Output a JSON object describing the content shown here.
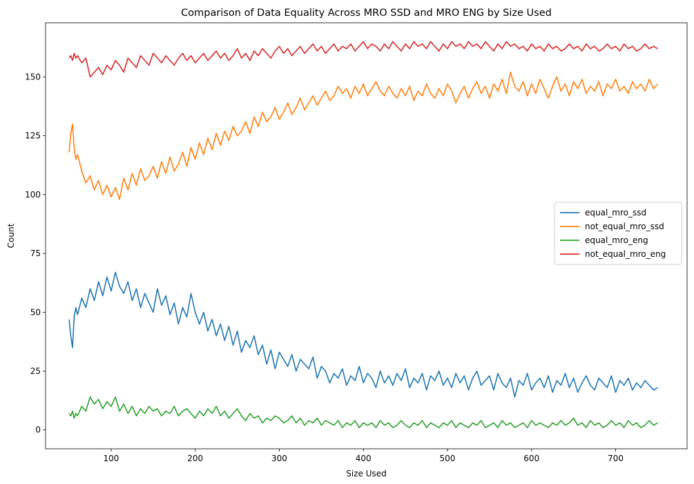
{
  "chart_data": {
    "type": "line",
    "title": "Comparison of Data Equality Across MRO SSD and MRO ENG by Size Used",
    "xlabel": "Size Used",
    "ylabel": "Count",
    "xlim": [
      22,
      785
    ],
    "ylim": [
      -8,
      173
    ],
    "xticks": [
      100,
      200,
      300,
      400,
      500,
      600,
      700
    ],
    "yticks": [
      0,
      25,
      50,
      75,
      100,
      125,
      150
    ],
    "legend_position": "center-right",
    "grid": false,
    "series": [
      {
        "name": "equal_mro_ssd",
        "color": "#1f77b4",
        "x": [
          50,
          52,
          54,
          56,
          58,
          60,
          65,
          70,
          75,
          80,
          85,
          90,
          95,
          100,
          105,
          110,
          115,
          120,
          125,
          130,
          135,
          140,
          145,
          150,
          155,
          160,
          165,
          170,
          175,
          180,
          185,
          190,
          195,
          200,
          205,
          210,
          215,
          220,
          225,
          230,
          235,
          240,
          245,
          250,
          255,
          260,
          265,
          270,
          275,
          280,
          285,
          290,
          295,
          300,
          305,
          310,
          315,
          320,
          325,
          330,
          335,
          340,
          345,
          350,
          355,
          360,
          365,
          370,
          375,
          380,
          385,
          390,
          395,
          400,
          405,
          410,
          415,
          420,
          425,
          430,
          435,
          440,
          445,
          450,
          455,
          460,
          465,
          470,
          475,
          480,
          485,
          490,
          495,
          500,
          505,
          510,
          515,
          520,
          525,
          530,
          535,
          540,
          545,
          550,
          555,
          560,
          565,
          570,
          575,
          580,
          585,
          590,
          595,
          600,
          605,
          610,
          615,
          620,
          625,
          630,
          635,
          640,
          645,
          650,
          655,
          660,
          665,
          670,
          675,
          680,
          685,
          690,
          695,
          700,
          705,
          710,
          715,
          720,
          725,
          730,
          735,
          740,
          745,
          750
        ],
        "values": [
          47,
          40,
          35,
          48,
          52,
          49,
          56,
          52,
          60,
          55,
          63,
          57,
          65,
          59,
          67,
          61,
          58,
          63,
          55,
          60,
          52,
          58,
          54,
          50,
          60,
          53,
          57,
          49,
          54,
          45,
          52,
          48,
          58,
          50,
          45,
          50,
          42,
          47,
          40,
          45,
          38,
          44,
          36,
          42,
          33,
          38,
          35,
          40,
          32,
          36,
          28,
          34,
          26,
          33,
          30,
          27,
          32,
          25,
          30,
          28,
          26,
          31,
          22,
          27,
          25,
          20,
          24,
          22,
          26,
          19,
          23,
          21,
          27,
          20,
          24,
          22,
          18,
          25,
          20,
          23,
          19,
          24,
          21,
          26,
          18,
          22,
          20,
          24,
          17,
          23,
          21,
          25,
          19,
          22,
          18,
          24,
          20,
          23,
          17,
          22,
          25,
          19,
          21,
          23,
          17,
          24,
          20,
          18,
          22,
          14,
          21,
          19,
          24,
          17,
          20,
          22,
          18,
          23,
          16,
          21,
          19,
          24,
          18,
          22,
          16,
          20,
          23,
          19,
          17,
          22,
          20,
          18,
          23,
          16,
          21,
          19,
          22,
          17,
          20,
          18,
          21,
          19,
          17,
          18
        ]
      },
      {
        "name": "not_equal_mro_ssd",
        "color": "#ff7f0e",
        "x": [
          50,
          52,
          54,
          56,
          58,
          60,
          65,
          70,
          75,
          80,
          85,
          90,
          95,
          100,
          105,
          110,
          115,
          120,
          125,
          130,
          135,
          140,
          145,
          150,
          155,
          160,
          165,
          170,
          175,
          180,
          185,
          190,
          195,
          200,
          205,
          210,
          215,
          220,
          225,
          230,
          235,
          240,
          245,
          250,
          255,
          260,
          265,
          270,
          275,
          280,
          285,
          290,
          295,
          300,
          305,
          310,
          315,
          320,
          325,
          330,
          335,
          340,
          345,
          350,
          355,
          360,
          365,
          370,
          375,
          380,
          385,
          390,
          395,
          400,
          405,
          410,
          415,
          420,
          425,
          430,
          435,
          440,
          445,
          450,
          455,
          460,
          465,
          470,
          475,
          480,
          485,
          490,
          495,
          500,
          505,
          510,
          515,
          520,
          525,
          530,
          535,
          540,
          545,
          550,
          555,
          560,
          565,
          570,
          575,
          580,
          585,
          590,
          595,
          600,
          605,
          610,
          615,
          620,
          625,
          630,
          635,
          640,
          645,
          650,
          655,
          660,
          665,
          670,
          675,
          680,
          685,
          690,
          695,
          700,
          705,
          710,
          715,
          720,
          725,
          730,
          735,
          740,
          745,
          750
        ],
        "values": [
          118,
          126,
          130,
          120,
          115,
          117,
          110,
          105,
          108,
          102,
          106,
          100,
          104,
          99,
          103,
          98,
          107,
          102,
          109,
          104,
          111,
          106,
          108,
          112,
          107,
          114,
          109,
          116,
          110,
          113,
          118,
          112,
          120,
          115,
          122,
          117,
          124,
          119,
          126,
          121,
          127,
          123,
          129,
          125,
          127,
          131,
          126,
          133,
          129,
          135,
          131,
          133,
          137,
          132,
          135,
          139,
          134,
          137,
          141,
          136,
          139,
          142,
          138,
          141,
          144,
          140,
          142,
          146,
          143,
          145,
          141,
          146,
          143,
          147,
          142,
          145,
          148,
          144,
          142,
          146,
          143,
          141,
          145,
          142,
          146,
          140,
          144,
          142,
          147,
          143,
          141,
          145,
          142,
          147,
          144,
          139,
          143,
          146,
          141,
          145,
          148,
          143,
          146,
          141,
          147,
          144,
          149,
          143,
          152,
          146,
          144,
          148,
          142,
          147,
          143,
          149,
          145,
          141,
          146,
          150,
          144,
          147,
          142,
          148,
          145,
          149,
          143,
          146,
          144,
          148,
          142,
          147,
          145,
          149,
          144,
          146,
          143,
          148,
          145,
          147,
          144,
          149,
          145,
          147
        ]
      },
      {
        "name": "equal_mro_eng",
        "color": "#2ca02c",
        "x": [
          50,
          52,
          54,
          56,
          58,
          60,
          65,
          70,
          75,
          80,
          85,
          90,
          95,
          100,
          105,
          110,
          115,
          120,
          125,
          130,
          135,
          140,
          145,
          150,
          155,
          160,
          165,
          170,
          175,
          180,
          185,
          190,
          195,
          200,
          205,
          210,
          215,
          220,
          225,
          230,
          235,
          240,
          245,
          250,
          255,
          260,
          265,
          270,
          275,
          280,
          285,
          290,
          295,
          300,
          305,
          310,
          315,
          320,
          325,
          330,
          335,
          340,
          345,
          350,
          355,
          360,
          365,
          370,
          375,
          380,
          385,
          390,
          395,
          400,
          405,
          410,
          415,
          420,
          425,
          430,
          435,
          440,
          445,
          450,
          455,
          460,
          465,
          470,
          475,
          480,
          485,
          490,
          495,
          500,
          505,
          510,
          515,
          520,
          525,
          530,
          535,
          540,
          545,
          550,
          555,
          560,
          565,
          570,
          575,
          580,
          585,
          590,
          595,
          600,
          605,
          610,
          615,
          620,
          625,
          630,
          635,
          640,
          645,
          650,
          655,
          660,
          665,
          670,
          675,
          680,
          685,
          690,
          695,
          700,
          705,
          710,
          715,
          720,
          725,
          730,
          735,
          740,
          745,
          750
        ],
        "values": [
          7,
          6,
          8,
          5,
          7,
          6,
          10,
          8,
          14,
          11,
          13,
          9,
          12,
          10,
          14,
          8,
          11,
          7,
          10,
          6,
          9,
          7,
          10,
          8,
          9,
          6,
          8,
          7,
          10,
          6,
          8,
          9,
          7,
          5,
          8,
          6,
          9,
          7,
          10,
          6,
          8,
          5,
          7,
          9,
          6,
          4,
          7,
          5,
          6,
          3,
          5,
          4,
          6,
          5,
          3,
          4,
          6,
          3,
          5,
          2,
          4,
          3,
          5,
          2,
          4,
          3,
          2,
          4,
          1,
          3,
          2,
          4,
          1,
          3,
          2,
          3,
          1,
          4,
          2,
          3,
          1,
          2,
          4,
          2,
          1,
          3,
          2,
          4,
          1,
          3,
          2,
          1,
          3,
          2,
          4,
          1,
          3,
          2,
          1,
          3,
          2,
          4,
          1,
          2,
          3,
          1,
          4,
          2,
          3,
          1,
          2,
          3,
          1,
          4,
          2,
          3,
          2,
          1,
          3,
          2,
          4,
          2,
          3,
          5,
          2,
          3,
          1,
          4,
          2,
          3,
          1,
          2,
          4,
          2,
          3,
          1,
          4,
          2,
          3,
          1,
          2,
          4,
          2,
          3
        ]
      },
      {
        "name": "not_equal_mro_eng",
        "color": "#d62728",
        "x": [
          50,
          52,
          54,
          56,
          58,
          60,
          65,
          70,
          75,
          80,
          85,
          90,
          95,
          100,
          105,
          110,
          115,
          120,
          125,
          130,
          135,
          140,
          145,
          150,
          155,
          160,
          165,
          170,
          175,
          180,
          185,
          190,
          195,
          200,
          205,
          210,
          215,
          220,
          225,
          230,
          235,
          240,
          245,
          250,
          255,
          260,
          265,
          270,
          275,
          280,
          285,
          290,
          295,
          300,
          305,
          310,
          315,
          320,
          325,
          330,
          335,
          340,
          345,
          350,
          355,
          360,
          365,
          370,
          375,
          380,
          385,
          390,
          395,
          400,
          405,
          410,
          415,
          420,
          425,
          430,
          435,
          440,
          445,
          450,
          455,
          460,
          465,
          470,
          475,
          480,
          485,
          490,
          495,
          500,
          505,
          510,
          515,
          520,
          525,
          530,
          535,
          540,
          545,
          550,
          555,
          560,
          565,
          570,
          575,
          580,
          585,
          590,
          595,
          600,
          605,
          610,
          615,
          620,
          625,
          630,
          635,
          640,
          645,
          650,
          655,
          660,
          665,
          670,
          675,
          680,
          685,
          690,
          695,
          700,
          705,
          710,
          715,
          720,
          725,
          730,
          735,
          740,
          745,
          750
        ],
        "values": [
          158,
          159,
          157,
          160,
          158,
          159,
          156,
          158,
          150,
          152,
          154,
          151,
          155,
          153,
          157,
          155,
          152,
          158,
          156,
          154,
          159,
          157,
          155,
          160,
          158,
          156,
          159,
          157,
          155,
          158,
          160,
          157,
          159,
          156,
          158,
          160,
          157,
          159,
          161,
          158,
          160,
          157,
          159,
          162,
          158,
          160,
          157,
          161,
          159,
          162,
          160,
          158,
          161,
          163,
          160,
          162,
          159,
          161,
          163,
          160,
          162,
          164,
          161,
          163,
          160,
          162,
          164,
          161,
          163,
          162,
          164,
          161,
          163,
          165,
          162,
          164,
          163,
          161,
          164,
          162,
          165,
          163,
          161,
          164,
          162,
          165,
          163,
          164,
          162,
          165,
          163,
          161,
          164,
          162,
          165,
          163,
          164,
          162,
          165,
          163,
          164,
          162,
          165,
          163,
          161,
          164,
          162,
          165,
          163,
          164,
          162,
          163,
          161,
          164,
          162,
          163,
          161,
          164,
          162,
          163,
          161,
          162,
          164,
          162,
          163,
          161,
          164,
          162,
          163,
          161,
          162,
          164,
          162,
          163,
          161,
          164,
          162,
          163,
          161,
          162,
          164,
          162,
          163,
          162
        ]
      }
    ]
  }
}
